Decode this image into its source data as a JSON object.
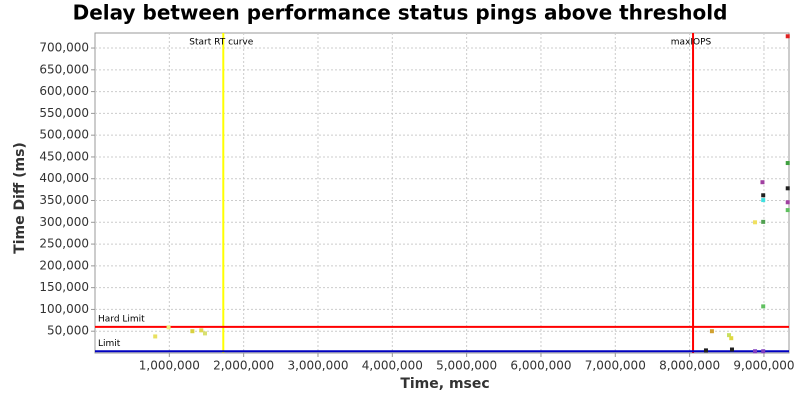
{
  "chart_data": {
    "type": "scatter",
    "title": "Delay between performance status pings above threshold",
    "x_label": "Time, msec",
    "y_label": "Time Diff (ms)",
    "x": [
      810000,
      990000,
      1310000,
      1430000,
      1480000,
      8300000,
      8530000,
      8560000,
      8880000,
      8990000,
      8990000,
      8980000,
      8990000,
      8990000,
      9320000,
      9320000,
      9320000,
      9320000,
      9320000,
      8220000,
      8570000,
      8880000,
      8990000
    ],
    "values": [
      38000,
      59000,
      50000,
      52000,
      45000,
      50000,
      41000,
      34000,
      300000,
      301000,
      107000,
      392000,
      362000,
      351000,
      436000,
      378000,
      346000,
      328000,
      727000,
      6000,
      8000,
      4000,
      4000
    ],
    "colors": [
      "#e8e060",
      "#f0f080",
      "#d8d040",
      "#e0d850",
      "#d8e070",
      "#d0a030",
      "#c8e060",
      "#e0d840",
      "#f0e060",
      "#50a050",
      "#60c060",
      "#a040a0",
      "#202020",
      "#40e0e0",
      "#40a040",
      "#202020",
      "#a040a0",
      "#60c060",
      "#e02020",
      "#202020",
      "#202020",
      "#8040c0",
      "#8040c0"
    ],
    "xlim": [
      0,
      9337000
    ],
    "ylim": [
      0,
      734500
    ],
    "xticks": [
      {
        "value": 1000000,
        "label": "1,000,000"
      },
      {
        "value": 2000000,
        "label": "2,000,000"
      },
      {
        "value": 3000000,
        "label": "3,000,000"
      },
      {
        "value": 4000000,
        "label": "4,000,000"
      },
      {
        "value": 5000000,
        "label": "5,000,000"
      },
      {
        "value": 6000000,
        "label": "6,000,000"
      },
      {
        "value": 7000000,
        "label": "7,000,000"
      },
      {
        "value": 8000000,
        "label": "8,000,000"
      },
      {
        "value": 9000000,
        "label": "9,000,000"
      }
    ],
    "yticks": [
      {
        "value": 50000,
        "label": "50,000"
      },
      {
        "value": 100000,
        "label": "100,000"
      },
      {
        "value": 150000,
        "label": "150,000"
      },
      {
        "value": 200000,
        "label": "200,000"
      },
      {
        "value": 250000,
        "label": "250,000"
      },
      {
        "value": 300000,
        "label": "300,000"
      },
      {
        "value": 350000,
        "label": "350,000"
      },
      {
        "value": 400000,
        "label": "400,000"
      },
      {
        "value": 450000,
        "label": "450,000"
      },
      {
        "value": 500000,
        "label": "500,000"
      },
      {
        "value": 550000,
        "label": "550,000"
      },
      {
        "value": 600000,
        "label": "600,000"
      },
      {
        "value": 650000,
        "label": "650,000"
      },
      {
        "value": 700000,
        "label": "700,000"
      }
    ],
    "grid": true,
    "reference_lines": [
      {
        "axis": "x",
        "value": 1726000,
        "label": "Start RT curve",
        "color": "#ffff00"
      },
      {
        "axis": "x",
        "value": 8046000,
        "label": "maxIOPS",
        "color": "#ff0000"
      },
      {
        "axis": "y",
        "value": 60000,
        "label": "Hard Limit",
        "color": "#ff0000"
      },
      {
        "axis": "y",
        "value": 4000,
        "label": "Limit",
        "color": "#0000c0"
      }
    ]
  }
}
